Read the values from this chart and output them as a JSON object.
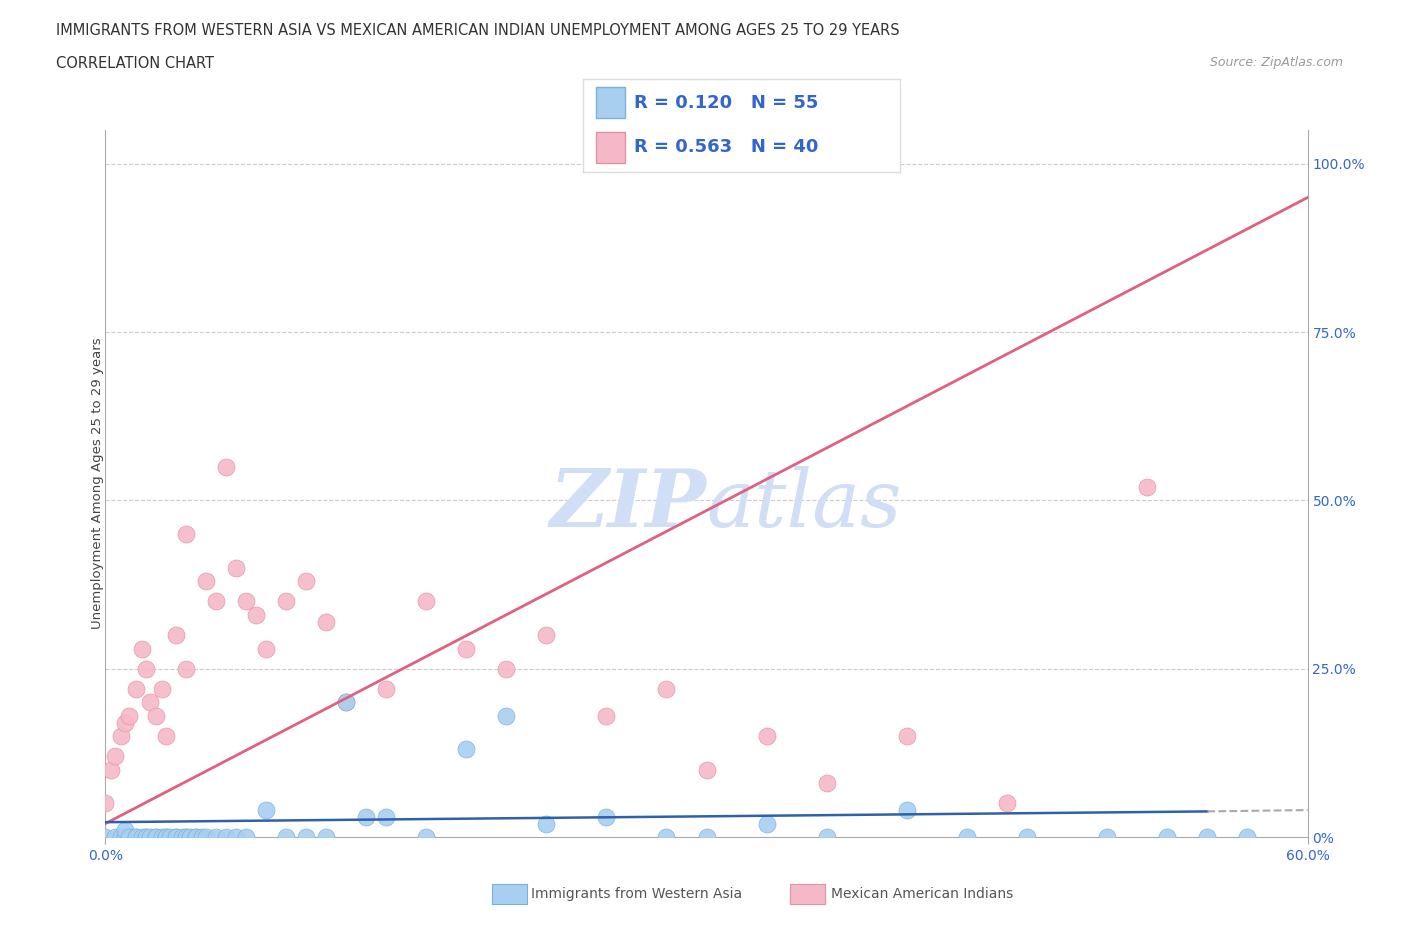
{
  "title_line1": "IMMIGRANTS FROM WESTERN ASIA VS MEXICAN AMERICAN INDIAN UNEMPLOYMENT AMONG AGES 25 TO 29 YEARS",
  "title_line2": "CORRELATION CHART",
  "source_text": "Source: ZipAtlas.com",
  "ylabel": "Unemployment Among Ages 25 to 29 years",
  "xlim": [
    0.0,
    0.6
  ],
  "ylim": [
    0.0,
    1.05
  ],
  "xtick_positions": [
    0.0,
    0.6
  ],
  "xticklabels": [
    "0.0%",
    "60.0%"
  ],
  "yticks_right": [
    0.0,
    0.25,
    0.5,
    0.75,
    1.0
  ],
  "yticklabels_right": [
    "0%",
    "25.0%",
    "50.0%",
    "75.0%",
    "100.0%"
  ],
  "blue_color": "#a8cff0",
  "pink_color": "#f5b8c8",
  "blue_edge_color": "#7ab0e0",
  "pink_edge_color": "#e890a8",
  "blue_line_color": "#3060a8",
  "pink_line_color": "#e06080",
  "blue_line_dash": false,
  "pink_line_dash": false,
  "dashed_extension_color": "#aaaaaa",
  "grid_color": "#cccccc",
  "legend_text_color": "#3366cc",
  "watermark_color": "#d0dff5",
  "R_blue": 0.12,
  "N_blue": 55,
  "R_pink": 0.563,
  "N_pink": 40,
  "blue_scatter_x": [
    0.0,
    0.005,
    0.008,
    0.01,
    0.01,
    0.012,
    0.015,
    0.015,
    0.018,
    0.02,
    0.02,
    0.022,
    0.025,
    0.025,
    0.028,
    0.03,
    0.03,
    0.032,
    0.035,
    0.035,
    0.038,
    0.04,
    0.04,
    0.042,
    0.045,
    0.045,
    0.048,
    0.05,
    0.055,
    0.06,
    0.065,
    0.07,
    0.08,
    0.09,
    0.1,
    0.11,
    0.12,
    0.13,
    0.14,
    0.16,
    0.18,
    0.2,
    0.22,
    0.25,
    0.28,
    0.3,
    0.33,
    0.36,
    0.4,
    0.43,
    0.46,
    0.5,
    0.53,
    0.55,
    0.57
  ],
  "blue_scatter_y": [
    0.0,
    0.0,
    0.0,
    0.0,
    0.01,
    0.0,
    0.0,
    0.0,
    0.0,
    0.0,
    0.0,
    0.0,
    0.0,
    0.0,
    0.0,
    0.0,
    0.0,
    0.0,
    0.0,
    0.0,
    0.0,
    0.0,
    0.0,
    0.0,
    0.0,
    0.0,
    0.0,
    0.0,
    0.0,
    0.0,
    0.0,
    0.0,
    0.04,
    0.0,
    0.0,
    0.0,
    0.2,
    0.03,
    0.03,
    0.0,
    0.13,
    0.18,
    0.02,
    0.03,
    0.0,
    0.0,
    0.02,
    0.0,
    0.04,
    0.0,
    0.0,
    0.0,
    0.0,
    0.0,
    0.0
  ],
  "pink_scatter_x": [
    0.0,
    0.003,
    0.005,
    0.008,
    0.01,
    0.012,
    0.015,
    0.018,
    0.02,
    0.022,
    0.025,
    0.028,
    0.03,
    0.035,
    0.04,
    0.04,
    0.05,
    0.055,
    0.06,
    0.065,
    0.07,
    0.075,
    0.08,
    0.09,
    0.1,
    0.11,
    0.12,
    0.14,
    0.16,
    0.18,
    0.2,
    0.22,
    0.25,
    0.28,
    0.3,
    0.33,
    0.36,
    0.4,
    0.45,
    0.52
  ],
  "pink_scatter_y": [
    0.05,
    0.1,
    0.12,
    0.15,
    0.17,
    0.18,
    0.22,
    0.28,
    0.25,
    0.2,
    0.18,
    0.22,
    0.15,
    0.3,
    0.25,
    0.45,
    0.38,
    0.35,
    0.55,
    0.4,
    0.35,
    0.33,
    0.28,
    0.35,
    0.38,
    0.32,
    0.2,
    0.22,
    0.35,
    0.28,
    0.25,
    0.3,
    0.18,
    0.22,
    0.1,
    0.15,
    0.08,
    0.15,
    0.05,
    0.52
  ],
  "background_color": "#ffffff"
}
